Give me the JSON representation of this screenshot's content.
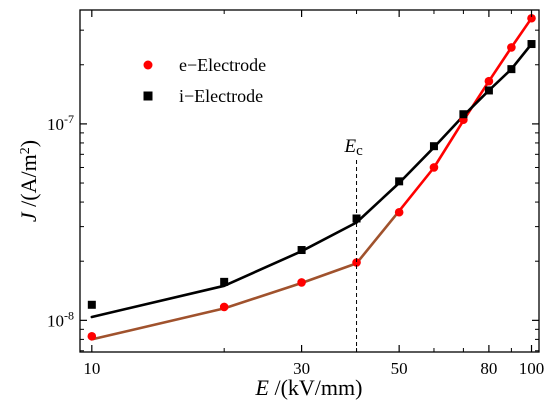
{
  "chart_data": {
    "type": "line",
    "x_scale": "log",
    "y_scale": "log",
    "xlabel_symbol": "E",
    "xlabel_unit": " /(kV/mm)",
    "ylabel_symbol": "J",
    "ylabel_unit": " /(A/m",
    "ylabel_unit_sup": "2",
    "ylabel_unit_end": ")",
    "xlim": [
      9.4,
      104
    ],
    "ylim": [
      6.9e-09,
      3.8e-07
    ],
    "x_ticks": [
      {
        "value": 10,
        "label": "10"
      },
      {
        "value": 30,
        "label": "30"
      },
      {
        "value": 50,
        "label": "50"
      },
      {
        "value": 80,
        "label": "80"
      },
      {
        "value": 100,
        "label": "100"
      }
    ],
    "x_minor_ticks": [
      20,
      40,
      60,
      70,
      90
    ],
    "y_ticks": [
      {
        "value": 1e-08,
        "mant": "10",
        "exp": "-8"
      },
      {
        "value": 1e-07,
        "mant": "10",
        "exp": "-7"
      }
    ],
    "annotation": {
      "symbol": "E",
      "subscript": "c",
      "x": 40
    },
    "legend_position": "top-left",
    "series": [
      {
        "name": "e−Electrode",
        "color": "#ff0000",
        "marker": "circle",
        "x": [
          10,
          20,
          30,
          40,
          50,
          60,
          70,
          80,
          90,
          100
        ],
        "y": [
          8.3e-09,
          1.17e-08,
          1.56e-08,
          1.97e-08,
          3.55e-08,
          6e-08,
          1.05e-07,
          1.65e-07,
          2.45e-07,
          3.45e-07
        ],
        "fit_segments": [
          {
            "x": [
              10,
              20,
              30,
              40
            ],
            "y": [
              8e-09,
              1.15e-08,
              1.55e-08,
              1.95e-08
            ],
            "color": "#a0522d"
          },
          {
            "x": [
              40,
              50
            ],
            "y": [
              1.95e-08,
              3.6e-08
            ],
            "color": "#a0522d"
          },
          {
            "x": [
              50,
              60,
              70,
              80,
              90,
              100
            ],
            "y": [
              3.6e-08,
              6e-08,
              1.04e-07,
              1.65e-07,
              2.45e-07,
              3.45e-07
            ],
            "color": "#ff0000"
          }
        ]
      },
      {
        "name": "i−Electrode",
        "color": "#000000",
        "marker": "square",
        "x": [
          10,
          20,
          30,
          40,
          50,
          60,
          70,
          80,
          90,
          100
        ],
        "y": [
          1.2e-08,
          1.57e-08,
          2.28e-08,
          3.3e-08,
          5.1e-08,
          7.7e-08,
          1.12e-07,
          1.48e-07,
          1.9e-07,
          2.55e-07
        ],
        "fit_segments": [
          {
            "x": [
              10,
              20,
              30,
              40
            ],
            "y": [
              1.04e-08,
              1.5e-08,
              2.25e-08,
              3.15e-08
            ],
            "color": "#000000"
          },
          {
            "x": [
              40,
              50,
              60,
              70,
              80,
              90,
              100
            ],
            "y": [
              3.15e-08,
              5e-08,
              7.6e-08,
              1.1e-07,
              1.48e-07,
              1.9e-07,
              2.55e-07
            ],
            "color": "#000000"
          }
        ]
      }
    ]
  }
}
